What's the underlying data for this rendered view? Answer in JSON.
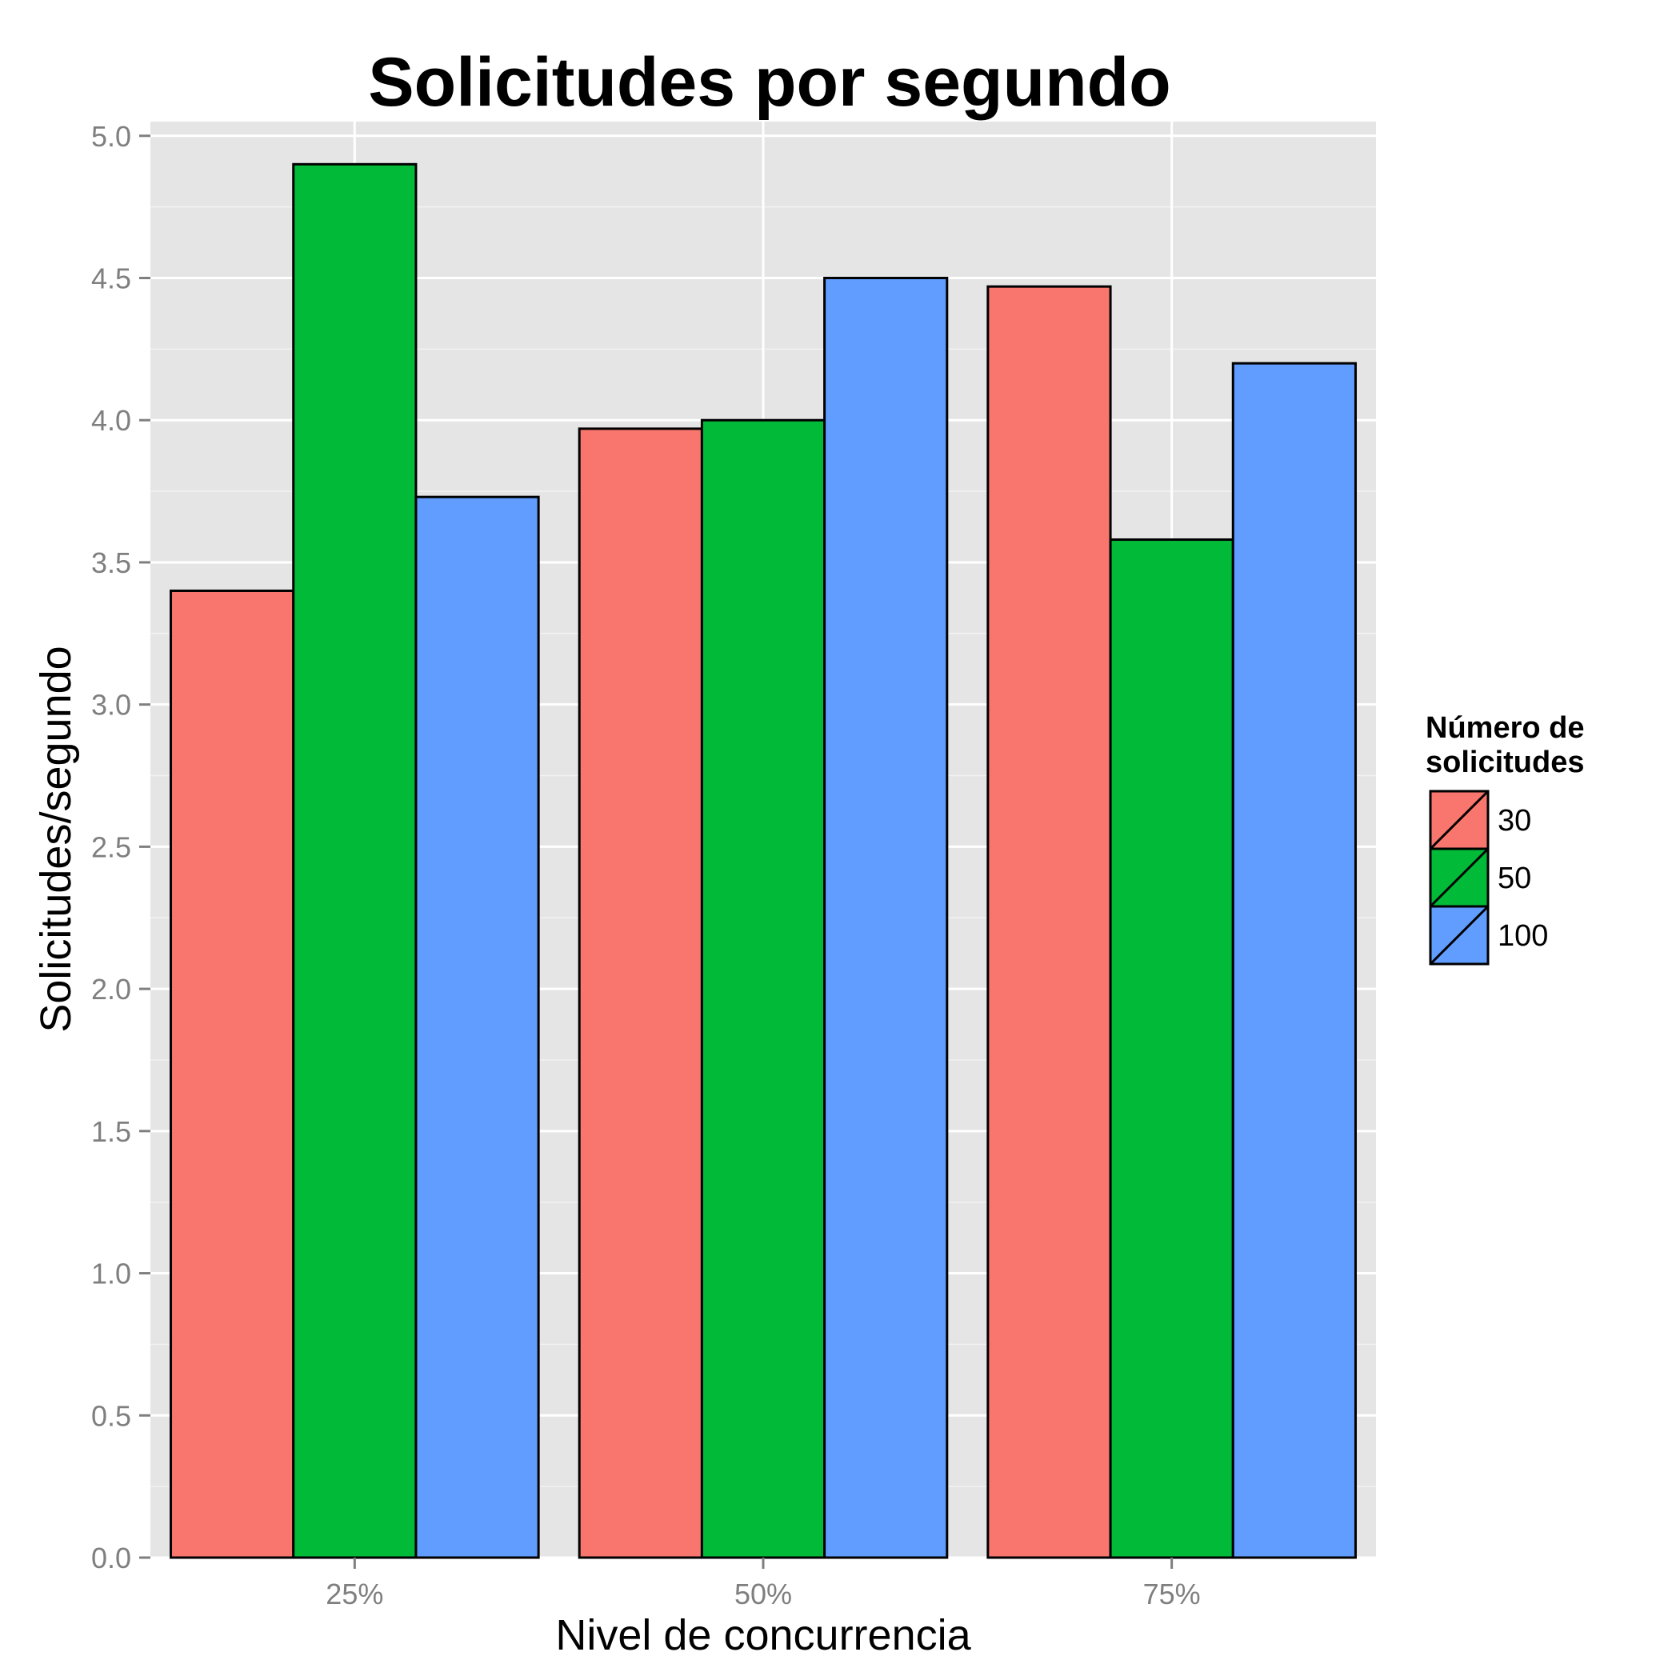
{
  "chart_data": {
    "type": "bar",
    "title": "Solicitudes por segundo",
    "xlabel": "Nivel de concurrencia",
    "ylabel": "Solicitudes/segundo",
    "categories": [
      "25%",
      "50%",
      "75%"
    ],
    "series": [
      {
        "name": "30",
        "color": "#f8766d",
        "values": [
          3.4,
          3.97,
          4.47
        ]
      },
      {
        "name": "50",
        "color": "#00ba38",
        "values": [
          4.9,
          4.0,
          3.58
        ]
      },
      {
        "name": "100",
        "color": "#619cff",
        "values": [
          3.73,
          4.5,
          4.2
        ]
      }
    ],
    "ylim": [
      0,
      5.05
    ],
    "yticks": [
      "0.0",
      "0.5",
      "1.0",
      "1.5",
      "2.0",
      "2.5",
      "3.0",
      "3.5",
      "4.0",
      "4.5",
      "5.0"
    ],
    "grid": true,
    "panel_background": "#e5e5e5",
    "legend": {
      "title_line1": "Número de",
      "title_line2": "solicitudes",
      "placement": "right"
    }
  }
}
